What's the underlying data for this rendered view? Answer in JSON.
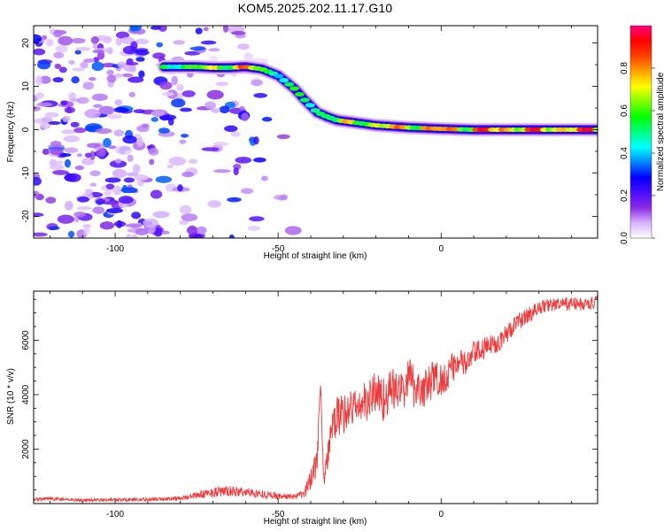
{
  "title": "KOM5.2025.202.11.17.G10",
  "chart_data": [
    {
      "type": "heatmap",
      "title": "KOM5.2025.202.11.17.G10",
      "xlabel": "Height of straight line (km)",
      "ylabel": "Frequency (Hz)",
      "xlim": [
        -125,
        48
      ],
      "ylim": [
        -25,
        24
      ],
      "x_ticks": [
        -100,
        -50,
        0
      ],
      "y_ticks": [
        -20,
        -10,
        0,
        10,
        20
      ],
      "colorbar": {
        "label": "Normalized spectral amplitude",
        "range": [
          0,
          1
        ],
        "ticks": [
          "0.0",
          "0.2",
          "0.4",
          "0.6",
          "0.8"
        ],
        "colors": [
          "#ffffff",
          "#d8b4ff",
          "#8a2be2",
          "#4b0cff",
          "#0000ff",
          "#0088ff",
          "#00ffff",
          "#00ff80",
          "#00ff00",
          "#80ff00",
          "#ffff00",
          "#ffa000",
          "#ff4000",
          "#ff0000",
          "#ff0080"
        ]
      },
      "ridge": {
        "description_points_x": [
          -85,
          -80,
          -75,
          -70,
          -65,
          -60,
          -55,
          -50,
          -45,
          -42,
          -40,
          -38,
          -35,
          -32,
          -30,
          -25,
          -20,
          -10,
          0,
          10,
          20,
          30,
          48
        ],
        "frequency_hz": [
          14.5,
          14.5,
          14.5,
          14.3,
          14.3,
          14.5,
          14.0,
          12.5,
          9.5,
          7.0,
          5.5,
          4.0,
          3.0,
          2.2,
          2.0,
          1.5,
          1.0,
          0.5,
          0.2,
          0.0,
          0.0,
          0.0,
          0.0
        ],
        "amplitude": [
          0.45,
          0.5,
          0.6,
          0.7,
          0.8,
          0.85,
          0.6,
          0.4,
          0.45,
          0.5,
          0.45,
          0.5,
          0.55,
          0.6,
          0.65,
          0.7,
          0.75,
          0.85,
          0.9,
          0.95,
          0.95,
          0.95,
          0.95
        ]
      },
      "noise_region_x": [
        -125,
        -40
      ]
    },
    {
      "type": "line",
      "xlabel": "Height of straight line (km)",
      "ylabel": "SNR (10 * v/v)",
      "xlim": [
        -125,
        48
      ],
      "ylim": [
        0,
        7800
      ],
      "x_ticks": [
        -100,
        -50,
        0
      ],
      "y_ticks": [
        2000,
        4000,
        6000
      ],
      "color": "#ef3b3b",
      "series": [
        {
          "x": [
            -125,
            -120,
            -110,
            -100,
            -90,
            -80,
            -75,
            -70,
            -65,
            -60,
            -55,
            -50,
            -45,
            -42,
            -40,
            -38,
            -37,
            -36,
            -35,
            -34,
            -32,
            -30,
            -28,
            -25,
            -22,
            -20,
            -18,
            -15,
            -12,
            -10,
            -8,
            -5,
            -2,
            0,
            2,
            5,
            8,
            10,
            12,
            15,
            18,
            20,
            22,
            25,
            28,
            30,
            33,
            36,
            40,
            44,
            48
          ],
          "values": [
            150,
            180,
            120,
            140,
            150,
            200,
            300,
            420,
            450,
            420,
            350,
            280,
            250,
            350,
            900,
            1800,
            4500,
            900,
            1500,
            2500,
            3200,
            3300,
            3500,
            3600,
            3800,
            4200,
            3800,
            4200,
            4100,
            4600,
            4300,
            4200,
            4600,
            4500,
            4800,
            5200,
            5100,
            5500,
            5600,
            5800,
            6000,
            6200,
            6500,
            6800,
            7000,
            7200,
            7300,
            7300,
            7350,
            7300,
            7400
          ],
          "jitter": [
            60,
            60,
            60,
            60,
            70,
            80,
            120,
            180,
            200,
            180,
            150,
            120,
            100,
            150,
            500,
            700,
            200,
            400,
            500,
            600,
            700,
            800,
            700,
            700,
            800,
            900,
            800,
            800,
            700,
            900,
            800,
            700,
            800,
            700,
            600,
            500,
            500,
            500,
            400,
            400,
            400,
            350,
            350,
            300,
            300,
            250,
            250,
            250,
            250,
            250,
            250
          ]
        }
      ]
    }
  ]
}
